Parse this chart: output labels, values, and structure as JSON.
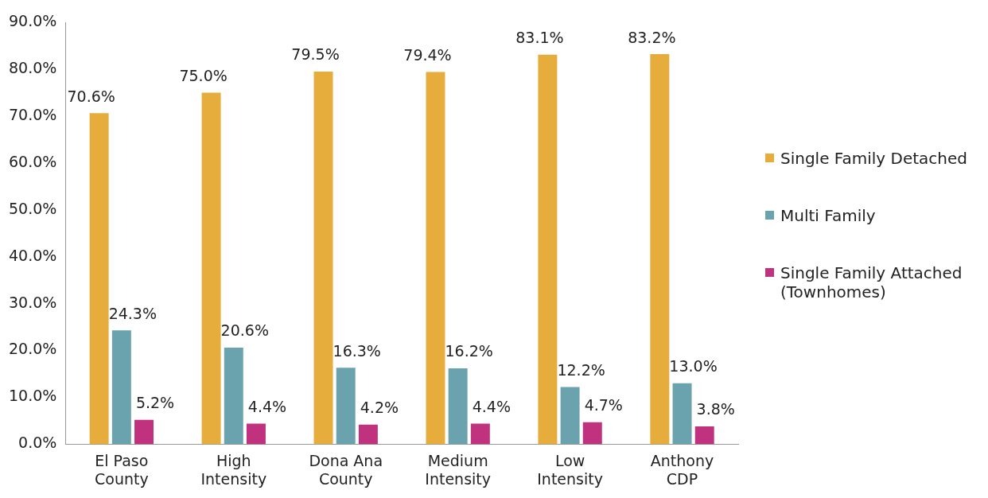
{
  "chart_data": {
    "type": "bar",
    "categories": [
      "El Paso County",
      "High Intensity",
      "Dona Ana County",
      "Medium Intensity",
      "Low Intensity",
      "Anthony CDP"
    ],
    "series": [
      {
        "name": "Single Family Detached",
        "color": "#e6ac3c",
        "values": [
          70.6,
          75.0,
          79.5,
          79.4,
          83.1,
          83.2
        ],
        "value_labels": [
          "70.6%",
          "75.0%",
          "79.5%",
          "79.4%",
          "83.1%",
          "83.2%"
        ]
      },
      {
        "name": "Multi Family",
        "color": "#6aa3ad",
        "values": [
          24.3,
          20.6,
          16.3,
          16.2,
          12.2,
          13.0
        ],
        "value_labels": [
          "24.3%",
          "20.6%",
          "16.3%",
          "16.2%",
          "12.2%",
          "13.0%"
        ]
      },
      {
        "name": "Single Family Attached (Townhomes)",
        "color": "#c0327e",
        "values": [
          5.2,
          4.4,
          4.2,
          4.4,
          4.7,
          3.8
        ],
        "value_labels": [
          "5.2%",
          "4.4%",
          "4.2%",
          "4.4%",
          "4.7%",
          "3.8%"
        ]
      }
    ],
    "ylim": [
      0,
      90
    ],
    "yticks": [
      {
        "value": 0,
        "label": "0.0%"
      },
      {
        "value": 10,
        "label": "10.0%"
      },
      {
        "value": 20,
        "label": "20.0%"
      },
      {
        "value": 30,
        "label": "30.0%"
      },
      {
        "value": 40,
        "label": "40.0%"
      },
      {
        "value": 50,
        "label": "50.0%"
      },
      {
        "value": 60,
        "label": "60.0%"
      },
      {
        "value": 70,
        "label": "70.0%"
      },
      {
        "value": 80,
        "label": "80.0%"
      },
      {
        "value": 90,
        "label": "90.0%"
      }
    ],
    "grid": false,
    "legend": "right"
  }
}
